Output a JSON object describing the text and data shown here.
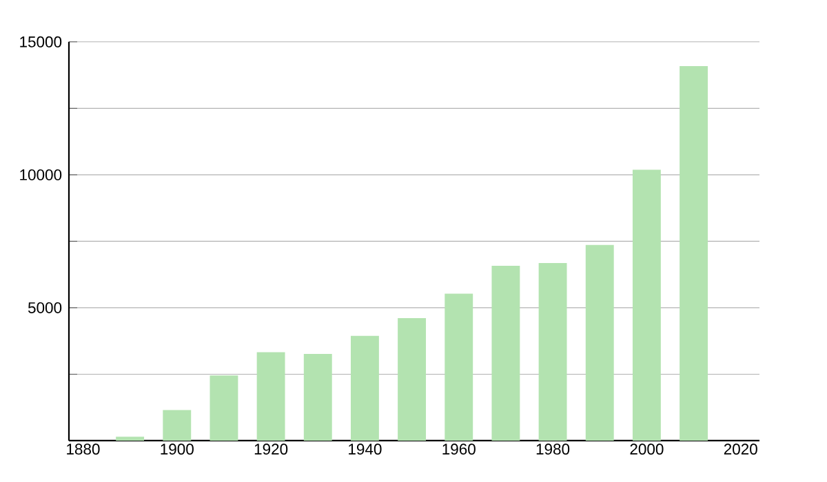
{
  "chart_data": {
    "type": "bar",
    "x": [
      1890,
      1900,
      1910,
      1920,
      1930,
      1940,
      1950,
      1960,
      1970,
      1980,
      1990,
      2000,
      2010
    ],
    "values": [
      150,
      1150,
      2450,
      3330,
      3260,
      3940,
      4610,
      5530,
      6580,
      6680,
      7360,
      10190,
      14090
    ],
    "color": "#b3e3b0",
    "xlim": [
      1877,
      2024
    ],
    "xticks": [
      1880,
      1900,
      1920,
      1940,
      1960,
      1980,
      2000,
      2020
    ],
    "ylim": [
      0,
      15000
    ],
    "yticks": [
      {
        "value": 2500,
        "label": null
      },
      5000,
      {
        "value": 7500,
        "label": null
      },
      10000,
      {
        "value": 12500,
        "label": null
      },
      15000
    ],
    "grid": "y"
  }
}
